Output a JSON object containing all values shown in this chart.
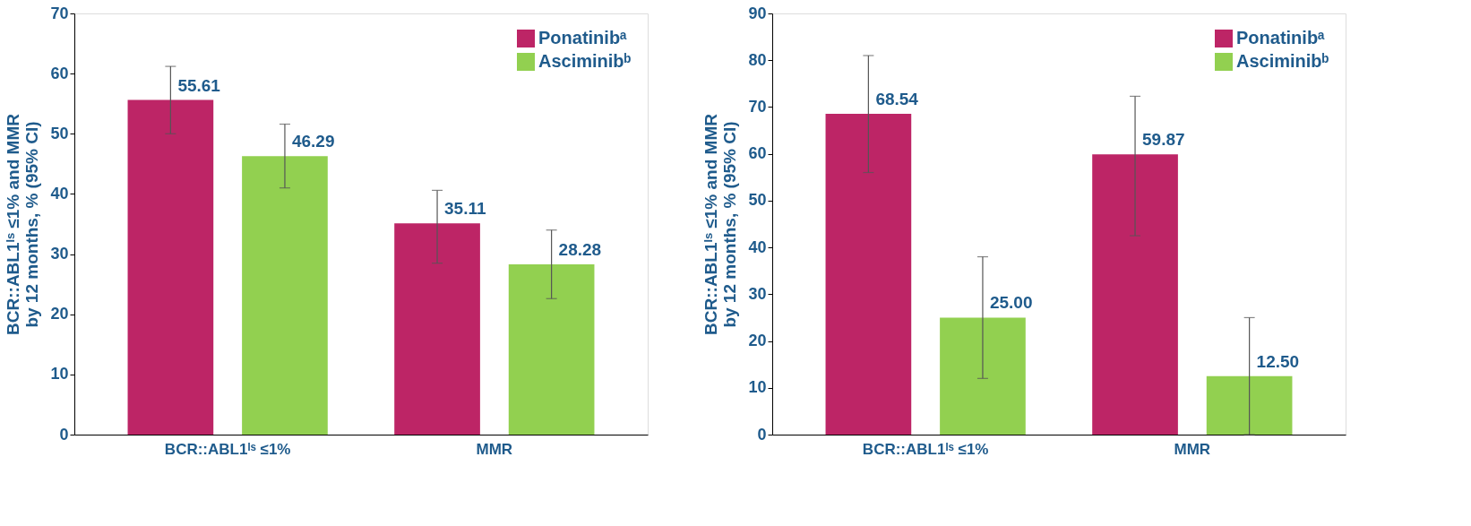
{
  "chart_data": [
    {
      "type": "bar",
      "ylabel": "BCR::ABL1ᴵˢ ≤1% and MMR\nby 12 months, % (95% CI)",
      "categories": [
        "BCR::ABL1ᴵˢ ≤1%",
        "MMR"
      ],
      "ylim": [
        0,
        70
      ],
      "yticks": [
        0,
        10,
        20,
        30,
        40,
        50,
        60,
        70
      ],
      "grid": false,
      "legend": "top right",
      "series": [
        {
          "name": "Ponatinibᵃ",
          "color": "#bd2566",
          "values": [
            55.61,
            35.11
          ],
          "errors": [
            [
              50.0,
              61.2
            ],
            [
              28.5,
              40.6
            ]
          ],
          "value_labels": [
            "55.61",
            "35.11"
          ]
        },
        {
          "name": "Asciminibᵇ",
          "color": "#92d050",
          "values": [
            46.29,
            28.28
          ],
          "errors": [
            [
              41.0,
              51.6
            ],
            [
              22.6,
              34.0
            ]
          ],
          "value_labels": [
            "46.29",
            "28.28"
          ]
        }
      ]
    },
    {
      "type": "bar",
      "ylabel": "BCR::ABL1ᴵˢ ≤1% and MMR\nby 12 months, % (95% CI)",
      "categories": [
        "BCR::ABL1ᴵˢ ≤1%",
        "MMR"
      ],
      "ylim": [
        0,
        90
      ],
      "yticks": [
        0,
        10,
        20,
        30,
        40,
        50,
        60,
        70,
        80,
        90
      ],
      "grid": false,
      "legend": "top right",
      "series": [
        {
          "name": "Ponatinibᵃ",
          "color": "#bd2566",
          "values": [
            68.54,
            59.87
          ],
          "errors": [
            [
              56.0,
              81.0
            ],
            [
              42.5,
              72.3
            ]
          ],
          "value_labels": [
            "68.54",
            "59.87"
          ]
        },
        {
          "name": "Asciminibᵇ",
          "color": "#92d050",
          "values": [
            25.0,
            12.5
          ],
          "errors": [
            [
              12.0,
              38.0
            ],
            [
              0,
              25.0
            ]
          ],
          "value_labels": [
            "25.00",
            "12.50"
          ]
        }
      ]
    }
  ]
}
